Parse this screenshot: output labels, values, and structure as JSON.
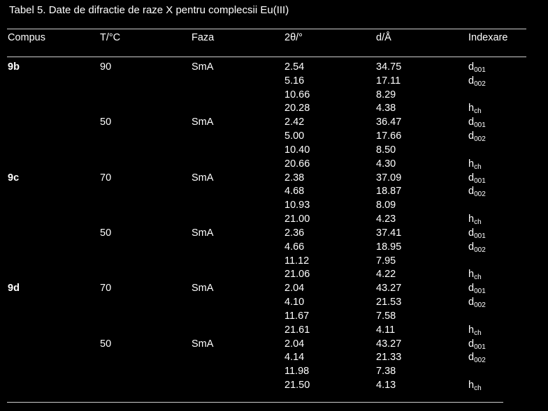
{
  "caption": "Tabel 5. Date de difractie de raze X pentru complecsii Eu(III)",
  "headers": {
    "compus": "Compus",
    "temp": "T/°C",
    "faza": "Faza",
    "theta": "2θ/°",
    "d": "d/Å",
    "indexare": "Indexare"
  },
  "rows": [
    {
      "compus": "9b",
      "temp": "90",
      "faza": "SmA",
      "theta": "2.54",
      "d": "34.75",
      "idx": "d",
      "sub": "001"
    },
    {
      "compus": "",
      "temp": "",
      "faza": "",
      "theta": "5.16",
      "d": "17.11",
      "idx": "d",
      "sub": "002"
    },
    {
      "compus": "",
      "temp": "",
      "faza": "",
      "theta": "10.66",
      "d": "8.29",
      "idx": "",
      "sub": ""
    },
    {
      "compus": "",
      "temp": "",
      "faza": "",
      "theta": "20.28",
      "d": "4.38",
      "idx": "h",
      "sub": "ch"
    },
    {
      "compus": "",
      "temp": "50",
      "faza": "SmA",
      "theta": "2.42",
      "d": "36.47",
      "idx": "d",
      "sub": "001"
    },
    {
      "compus": "",
      "temp": "",
      "faza": "",
      "theta": "5.00",
      "d": "17.66",
      "idx": "d",
      "sub": "002"
    },
    {
      "compus": "",
      "temp": "",
      "faza": "",
      "theta": "10.40",
      "d": "8.50",
      "idx": "",
      "sub": ""
    },
    {
      "compus": "",
      "temp": "",
      "faza": "",
      "theta": "20.66",
      "d": "4.30",
      "idx": "h",
      "sub": "ch"
    },
    {
      "compus": "9c",
      "temp": "70",
      "faza": "SmA",
      "theta": "2.38",
      "d": "37.09",
      "idx": "d",
      "sub": "001"
    },
    {
      "compus": "",
      "temp": "",
      "faza": "",
      "theta": "4.68",
      "d": "18.87",
      "idx": "d",
      "sub": "002"
    },
    {
      "compus": "",
      "temp": "",
      "faza": "",
      "theta": "10.93",
      "d": "8.09",
      "idx": "",
      "sub": ""
    },
    {
      "compus": "",
      "temp": "",
      "faza": "",
      "theta": "21.00",
      "d": "4.23",
      "idx": "h",
      "sub": "ch"
    },
    {
      "compus": "",
      "temp": "50",
      "faza": "SmA",
      "theta": "2.36",
      "d": "37.41",
      "idx": "d",
      "sub": "001"
    },
    {
      "compus": "",
      "temp": "",
      "faza": "",
      "theta": "4.66",
      "d": "18.95",
      "idx": "d",
      "sub": "002"
    },
    {
      "compus": "",
      "temp": "",
      "faza": "",
      "theta": "11.12",
      "d": "7.95",
      "idx": "",
      "sub": ""
    },
    {
      "compus": "",
      "temp": "",
      "faza": "",
      "theta": "21.06",
      "d": "4.22",
      "idx": "h",
      "sub": "ch"
    },
    {
      "compus": "9d",
      "temp": "70",
      "faza": "SmA",
      "theta": "2.04",
      "d": "43.27",
      "idx": "d",
      "sub": "001"
    },
    {
      "compus": "",
      "temp": "",
      "faza": "",
      "theta": "4.10",
      "d": "21.53",
      "idx": "d",
      "sub": "002"
    },
    {
      "compus": "",
      "temp": "",
      "faza": "",
      "theta": "11.67",
      "d": "7.58",
      "idx": "",
      "sub": ""
    },
    {
      "compus": "",
      "temp": "",
      "faza": "",
      "theta": "21.61",
      "d": "4.11",
      "idx": "h",
      "sub": "ch"
    },
    {
      "compus": "",
      "temp": "50",
      "faza": "SmA",
      "theta": "2.04",
      "d": "43.27",
      "idx": "d",
      "sub": "001"
    },
    {
      "compus": "",
      "temp": "",
      "faza": "",
      "theta": "4.14",
      "d": "21.33",
      "idx": "d",
      "sub": "002"
    },
    {
      "compus": "",
      "temp": "",
      "faza": "",
      "theta": "11.98",
      "d": "7.38",
      "idx": "",
      "sub": ""
    },
    {
      "compus": "",
      "temp": "",
      "faza": "",
      "theta": "21.50",
      "d": "4.13",
      "idx": "h",
      "sub": "ch"
    }
  ]
}
